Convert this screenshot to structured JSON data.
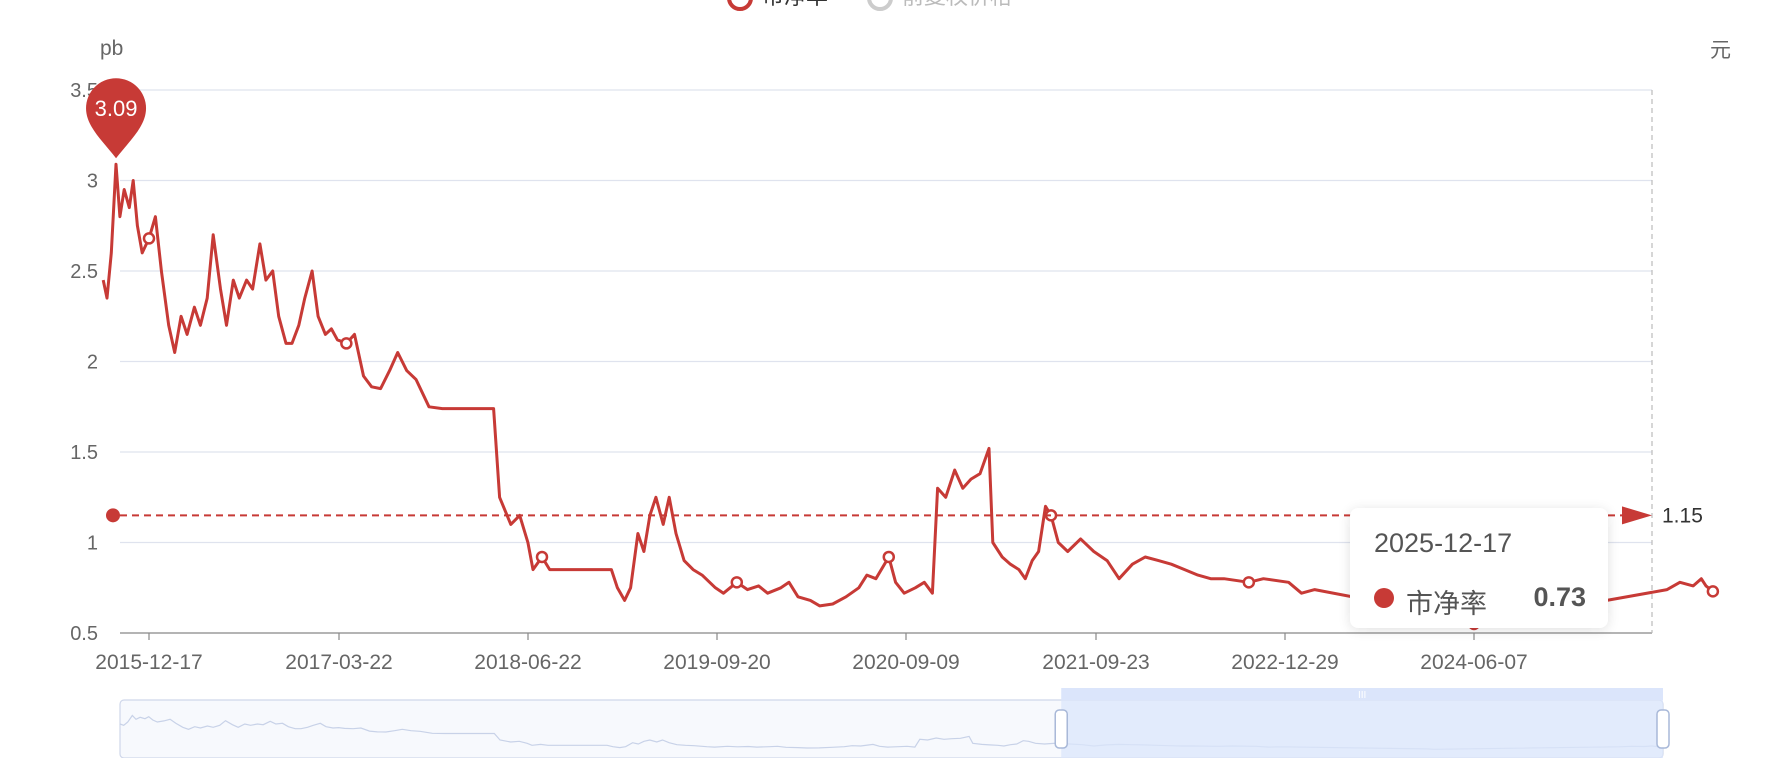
{
  "legend": {
    "items": [
      {
        "name": "市净率",
        "active": true,
        "color": "#c73a36"
      },
      {
        "name": "前复权价格",
        "active": false,
        "color": "#cccccc"
      }
    ]
  },
  "tooltip": {
    "date": "2025-12-17",
    "series_name": "市净率",
    "value": "0.73"
  },
  "colors": {
    "series": "#c73a36",
    "grid": "#dfe3ee",
    "axis_text": "#666666",
    "zoom_fill": "#dbe5fb"
  },
  "chart_data": {
    "type": "line",
    "title": "",
    "xlabel": "",
    "ylabel": "pb",
    "y2label": "元",
    "ylim": [
      0.5,
      3.5
    ],
    "y_ticks": [
      "0.5",
      "1",
      "1.5",
      "2",
      "2.5",
      "3",
      "3.5"
    ],
    "x_ticks": [
      "2015-12-17",
      "2017-03-22",
      "2018-06-22",
      "2019-09-20",
      "2020-09-09",
      "2021-09-23",
      "2022-12-29",
      "2024-06-07"
    ],
    "grid": true,
    "legend_position": "top-center",
    "x_range": [
      "2015-09-01",
      "2025-12-17"
    ],
    "series": [
      {
        "name": "市净率",
        "color": "#c73a36",
        "points": [
          [
            "2015-09-01",
            2.45
          ],
          [
            "2015-09-10",
            2.35
          ],
          [
            "2015-09-20",
            2.6
          ],
          [
            "2015-10-01",
            3.09
          ],
          [
            "2015-10-10",
            2.8
          ],
          [
            "2015-10-20",
            2.95
          ],
          [
            "2015-11-01",
            2.85
          ],
          [
            "2015-11-10",
            3.0
          ],
          [
            "2015-11-20",
            2.75
          ],
          [
            "2015-12-01",
            2.6
          ],
          [
            "2015-12-17",
            2.68
          ],
          [
            "2016-01-01",
            2.8
          ],
          [
            "2016-01-15",
            2.5
          ],
          [
            "2016-02-01",
            2.2
          ],
          [
            "2016-02-15",
            2.05
          ],
          [
            "2016-03-01",
            2.25
          ],
          [
            "2016-03-15",
            2.15
          ],
          [
            "2016-04-01",
            2.3
          ],
          [
            "2016-04-15",
            2.2
          ],
          [
            "2016-05-01",
            2.35
          ],
          [
            "2016-05-15",
            2.7
          ],
          [
            "2016-06-01",
            2.4
          ],
          [
            "2016-06-15",
            2.2
          ],
          [
            "2016-07-01",
            2.45
          ],
          [
            "2016-07-15",
            2.35
          ],
          [
            "2016-08-01",
            2.45
          ],
          [
            "2016-08-15",
            2.4
          ],
          [
            "2016-09-01",
            2.65
          ],
          [
            "2016-09-15",
            2.45
          ],
          [
            "2016-10-01",
            2.5
          ],
          [
            "2016-10-15",
            2.25
          ],
          [
            "2016-11-01",
            2.1
          ],
          [
            "2016-11-15",
            2.1
          ],
          [
            "2016-12-01",
            2.2
          ],
          [
            "2016-12-15",
            2.35
          ],
          [
            "2017-01-01",
            2.5
          ],
          [
            "2017-01-15",
            2.25
          ],
          [
            "2017-02-01",
            2.15
          ],
          [
            "2017-02-15",
            2.18
          ],
          [
            "2017-03-01",
            2.12
          ],
          [
            "2017-03-22",
            2.1
          ],
          [
            "2017-04-10",
            2.15
          ],
          [
            "2017-05-01",
            1.92
          ],
          [
            "2017-05-20",
            1.86
          ],
          [
            "2017-06-10",
            1.85
          ],
          [
            "2017-07-01",
            1.95
          ],
          [
            "2017-07-20",
            2.05
          ],
          [
            "2017-08-10",
            1.95
          ],
          [
            "2017-09-01",
            1.9
          ],
          [
            "2017-10-01",
            1.75
          ],
          [
            "2017-11-01",
            1.74
          ],
          [
            "2017-12-01",
            1.74
          ],
          [
            "2018-01-15",
            1.74
          ],
          [
            "2018-03-01",
            1.74
          ],
          [
            "2018-03-15",
            1.25
          ],
          [
            "2018-04-10",
            1.1
          ],
          [
            "2018-05-01",
            1.15
          ],
          [
            "2018-05-20",
            1.0
          ],
          [
            "2018-06-01",
            0.85
          ],
          [
            "2018-06-22",
            0.92
          ],
          [
            "2018-07-10",
            0.85
          ],
          [
            "2018-08-01",
            0.85
          ],
          [
            "2018-09-01",
            0.85
          ],
          [
            "2018-10-01",
            0.85
          ],
          [
            "2018-11-01",
            0.85
          ],
          [
            "2018-12-01",
            0.85
          ],
          [
            "2018-12-15",
            0.75
          ],
          [
            "2019-01-01",
            0.68
          ],
          [
            "2019-01-15",
            0.75
          ],
          [
            "2019-02-01",
            1.05
          ],
          [
            "2019-02-15",
            0.95
          ],
          [
            "2019-03-01",
            1.15
          ],
          [
            "2019-03-15",
            1.25
          ],
          [
            "2019-04-01",
            1.1
          ],
          [
            "2019-04-15",
            1.25
          ],
          [
            "2019-05-01",
            1.05
          ],
          [
            "2019-05-20",
            0.9
          ],
          [
            "2019-06-10",
            0.85
          ],
          [
            "2019-07-01",
            0.82
          ],
          [
            "2019-08-01",
            0.75
          ],
          [
            "2019-08-20",
            0.72
          ],
          [
            "2019-09-20",
            0.78
          ],
          [
            "2019-10-15",
            0.74
          ],
          [
            "2019-11-10",
            0.76
          ],
          [
            "2019-12-01",
            0.72
          ],
          [
            "2020-01-01",
            0.75
          ],
          [
            "2020-01-20",
            0.78
          ],
          [
            "2020-02-10",
            0.7
          ],
          [
            "2020-03-10",
            0.68
          ],
          [
            "2020-04-01",
            0.65
          ],
          [
            "2020-05-01",
            0.66
          ],
          [
            "2020-06-01",
            0.7
          ],
          [
            "2020-07-01",
            0.75
          ],
          [
            "2020-07-20",
            0.82
          ],
          [
            "2020-08-10",
            0.8
          ],
          [
            "2020-09-09",
            0.92
          ],
          [
            "2020-09-25",
            0.78
          ],
          [
            "2020-10-15",
            0.72
          ],
          [
            "2020-11-10",
            0.75
          ],
          [
            "2020-12-01",
            0.78
          ],
          [
            "2020-12-20",
            0.72
          ],
          [
            "2021-01-01",
            1.3
          ],
          [
            "2021-01-20",
            1.25
          ],
          [
            "2021-02-10",
            1.4
          ],
          [
            "2021-03-01",
            1.3
          ],
          [
            "2021-03-20",
            1.35
          ],
          [
            "2021-04-10",
            1.38
          ],
          [
            "2021-05-01",
            1.52
          ],
          [
            "2021-05-10",
            1.0
          ],
          [
            "2021-06-01",
            0.92
          ],
          [
            "2021-06-20",
            0.88
          ],
          [
            "2021-07-10",
            0.85
          ],
          [
            "2021-07-25",
            0.8
          ],
          [
            "2021-08-10",
            0.9
          ],
          [
            "2021-08-25",
            0.95
          ],
          [
            "2021-09-10",
            1.2
          ],
          [
            "2021-09-23",
            1.15
          ],
          [
            "2021-10-10",
            1.0
          ],
          [
            "2021-11-01",
            0.95
          ],
          [
            "2021-12-01",
            1.02
          ],
          [
            "2022-01-01",
            0.95
          ],
          [
            "2022-02-01",
            0.9
          ],
          [
            "2022-03-01",
            0.8
          ],
          [
            "2022-04-01",
            0.88
          ],
          [
            "2022-05-01",
            0.92
          ],
          [
            "2022-06-01",
            0.9
          ],
          [
            "2022-07-01",
            0.88
          ],
          [
            "2022-08-01",
            0.85
          ],
          [
            "2022-09-01",
            0.82
          ],
          [
            "2022-10-01",
            0.8
          ],
          [
            "2022-11-01",
            0.8
          ],
          [
            "2022-12-29",
            0.78
          ],
          [
            "2023-02-01",
            0.8
          ],
          [
            "2023-04-01",
            0.78
          ],
          [
            "2023-05-01",
            0.72
          ],
          [
            "2023-06-01",
            0.74
          ],
          [
            "2024-05-20",
            0.58
          ],
          [
            "2024-06-07",
            0.55
          ],
          [
            "2025-09-01",
            0.74
          ],
          [
            "2025-10-01",
            0.78
          ],
          [
            "2025-11-01",
            0.76
          ],
          [
            "2025-11-20",
            0.8
          ],
          [
            "2025-12-01",
            0.76
          ],
          [
            "2025-12-17",
            0.73
          ]
        ]
      }
    ],
    "annotations": [
      {
        "type": "max_marker",
        "date": "2015-10-01",
        "value": 3.09,
        "label": "3.09"
      },
      {
        "type": "average_line",
        "value": 1.15,
        "label": "1.15"
      }
    ]
  },
  "datazoom": {
    "range_start_fraction": 0.61,
    "range_end_fraction": 1.0,
    "handle_label": "III"
  }
}
